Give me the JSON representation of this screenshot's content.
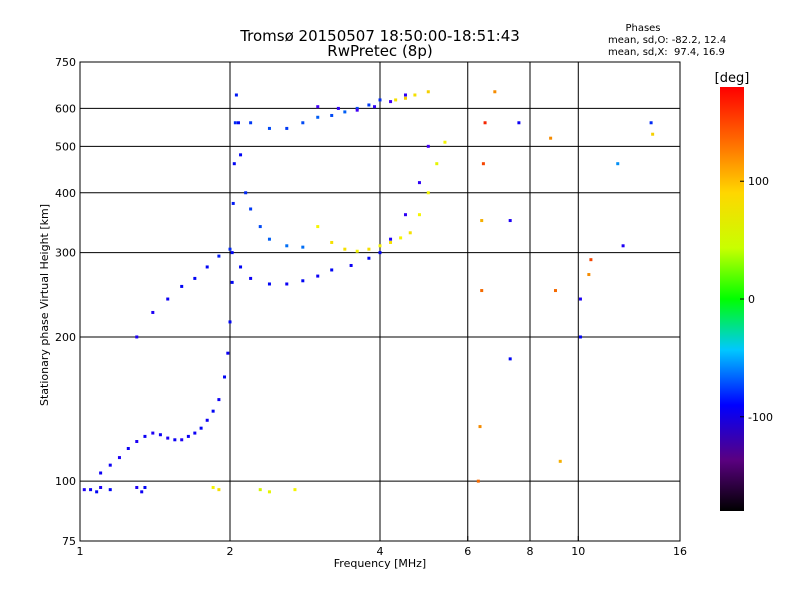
{
  "chart_data": {
    "type": "scatter",
    "title": "Tromsø 20150507 18:50:00-18:51:43",
    "subtitle": "RwPretec (8p)",
    "xlabel": "Frequency [MHz]",
    "ylabel": "Stationary phase Virtual Height [km]",
    "x_scale": "log2",
    "y_scale": "log",
    "xlim": [
      1,
      16
    ],
    "ylim": [
      75,
      750
    ],
    "x_ticks": [
      1,
      2,
      4,
      6,
      8,
      10,
      16
    ],
    "x_tick_labels": [
      "1",
      "2",
      "4",
      "6",
      "8",
      "10",
      "16"
    ],
    "y_ticks": [
      75,
      100,
      200,
      300,
      400,
      500,
      600,
      750
    ],
    "y_tick_labels": [
      "75",
      "100",
      "200",
      "300",
      "400",
      "500",
      "600",
      "750"
    ],
    "grid": true,
    "phase_box": {
      "heading": "Phases",
      "line_o": "mean, sd,O: -82.2, 12.4",
      "line_x": "mean, sd,X:  97.4, 16.9"
    },
    "colorbar": {
      "label": "[deg]",
      "range": [
        -180,
        180
      ],
      "ticks": [
        100,
        0,
        -100
      ],
      "tick_labels": [
        "100",
        "0",
        "-100"
      ]
    },
    "series": [
      {
        "values": [
          [
            1.02,
            96,
            -110
          ],
          [
            1.05,
            96,
            -105
          ],
          [
            1.08,
            95,
            -100
          ],
          [
            1.1,
            97,
            -110
          ],
          [
            1.15,
            96,
            -100
          ],
          [
            1.3,
            97,
            -110
          ],
          [
            1.33,
            95,
            -105
          ],
          [
            1.35,
            97,
            -100
          ]
        ]
      },
      {
        "values": [
          [
            1.1,
            104,
            -105
          ],
          [
            1.15,
            108,
            -105
          ],
          [
            1.2,
            112,
            -110
          ],
          [
            1.25,
            117,
            -105
          ],
          [
            1.3,
            121,
            -110
          ],
          [
            1.35,
            124,
            -105
          ],
          [
            1.4,
            126,
            -110
          ],
          [
            1.45,
            125,
            -105
          ],
          [
            1.5,
            123,
            -110
          ],
          [
            1.55,
            122,
            -105
          ],
          [
            1.6,
            122,
            -110
          ],
          [
            1.65,
            124,
            -105
          ],
          [
            1.7,
            126,
            -105
          ],
          [
            1.75,
            129,
            -100
          ],
          [
            1.8,
            134,
            -105
          ],
          [
            1.85,
            140,
            -100
          ],
          [
            1.9,
            148,
            -105
          ],
          [
            1.95,
            165,
            -100
          ],
          [
            1.98,
            185,
            -105
          ],
          [
            2.0,
            215,
            -100
          ],
          [
            2.02,
            260,
            -100
          ]
        ]
      },
      {
        "values": [
          [
            2.02,
            300,
            -100
          ],
          [
            2.03,
            380,
            -95
          ],
          [
            2.04,
            460,
            -100
          ],
          [
            2.05,
            560,
            -90
          ],
          [
            2.06,
            640,
            -95
          ],
          [
            2.08,
            560,
            -100
          ],
          [
            2.1,
            480,
            -100
          ]
        ]
      },
      {
        "values": [
          [
            1.3,
            200,
            -110
          ],
          [
            1.4,
            225,
            -110
          ],
          [
            1.5,
            240,
            -105
          ],
          [
            1.6,
            255,
            -100
          ],
          [
            1.7,
            265,
            -100
          ],
          [
            1.8,
            280,
            -100
          ],
          [
            1.9,
            295,
            -95
          ],
          [
            2.0,
            305,
            -90
          ]
        ]
      },
      {
        "values": [
          [
            2.1,
            280,
            -100
          ],
          [
            2.2,
            265,
            -105
          ],
          [
            2.4,
            258,
            -100
          ],
          [
            2.6,
            258,
            -105
          ],
          [
            2.8,
            262,
            -100
          ],
          [
            3.0,
            268,
            -105
          ],
          [
            3.2,
            276,
            -100
          ],
          [
            3.5,
            282,
            -105
          ],
          [
            3.8,
            292,
            -100
          ],
          [
            4.0,
            300,
            -100
          ],
          [
            4.2,
            320,
            -110
          ],
          [
            4.5,
            360,
            -115
          ],
          [
            4.8,
            420,
            -115
          ],
          [
            5.0,
            500,
            -120
          ]
        ]
      },
      {
        "values": [
          [
            2.15,
            400,
            -90
          ],
          [
            2.2,
            370,
            -85
          ],
          [
            2.3,
            340,
            -80
          ],
          [
            2.4,
            320,
            -75
          ],
          [
            2.6,
            310,
            -70
          ],
          [
            2.8,
            308,
            -70
          ]
        ]
      },
      {
        "values": [
          [
            3.0,
            340,
            110
          ],
          [
            3.2,
            315,
            115
          ],
          [
            3.4,
            305,
            115
          ],
          [
            3.6,
            302,
            110
          ],
          [
            3.8,
            305,
            115
          ],
          [
            4.0,
            310,
            110
          ],
          [
            4.2,
            315,
            115
          ],
          [
            4.4,
            322,
            110
          ],
          [
            4.6,
            330,
            115
          ],
          [
            4.8,
            360,
            110
          ],
          [
            5.0,
            400,
            110
          ],
          [
            5.2,
            460,
            105
          ],
          [
            5.4,
            510,
            110
          ]
        ]
      },
      {
        "values": [
          [
            2.2,
            560,
            -85
          ],
          [
            2.4,
            545,
            -80
          ],
          [
            2.6,
            545,
            -85
          ],
          [
            2.8,
            560,
            -80
          ],
          [
            3.0,
            575,
            -75
          ],
          [
            3.2,
            580,
            -80
          ],
          [
            3.4,
            590,
            -75
          ],
          [
            3.6,
            600,
            -80
          ],
          [
            3.8,
            610,
            -85
          ],
          [
            4.0,
            625,
            -90
          ]
        ]
      },
      {
        "values": [
          [
            3.0,
            605,
            -120
          ],
          [
            3.3,
            600,
            -115
          ],
          [
            3.6,
            595,
            -120
          ],
          [
            3.9,
            605,
            -115
          ],
          [
            4.2,
            620,
            -120
          ],
          [
            4.5,
            640,
            -115
          ]
        ]
      },
      {
        "values": [
          [
            4.3,
            625,
            115
          ],
          [
            4.5,
            630,
            120
          ],
          [
            4.7,
            640,
            115
          ],
          [
            5.0,
            650,
            120
          ]
        ]
      },
      {
        "values": [
          [
            1.85,
            97,
            110
          ],
          [
            1.9,
            96,
            115
          ],
          [
            2.3,
            96,
            100
          ],
          [
            2.4,
            95,
            105
          ],
          [
            2.7,
            96,
            110
          ]
        ]
      },
      {
        "values": [
          [
            6.3,
            100,
            150
          ],
          [
            6.35,
            130,
            140
          ],
          [
            6.4,
            250,
            150
          ],
          [
            6.4,
            350,
            130
          ],
          [
            6.45,
            460,
            160
          ],
          [
            6.5,
            560,
            170
          ],
          [
            6.8,
            650,
            140
          ],
          [
            7.3,
            180,
            -100
          ],
          [
            7.3,
            350,
            -110
          ],
          [
            7.6,
            560,
            -105
          ],
          [
            8.8,
            520,
            140
          ],
          [
            9.0,
            250,
            150
          ],
          [
            9.2,
            110,
            130
          ],
          [
            10.1,
            240,
            -110
          ],
          [
            10.1,
            200,
            -100
          ],
          [
            10.5,
            270,
            140
          ],
          [
            10.6,
            290,
            160
          ],
          [
            12.0,
            460,
            -60
          ],
          [
            12.3,
            310,
            -110
          ],
          [
            14.0,
            560,
            -90
          ],
          [
            14.1,
            530,
            120
          ]
        ]
      }
    ]
  }
}
